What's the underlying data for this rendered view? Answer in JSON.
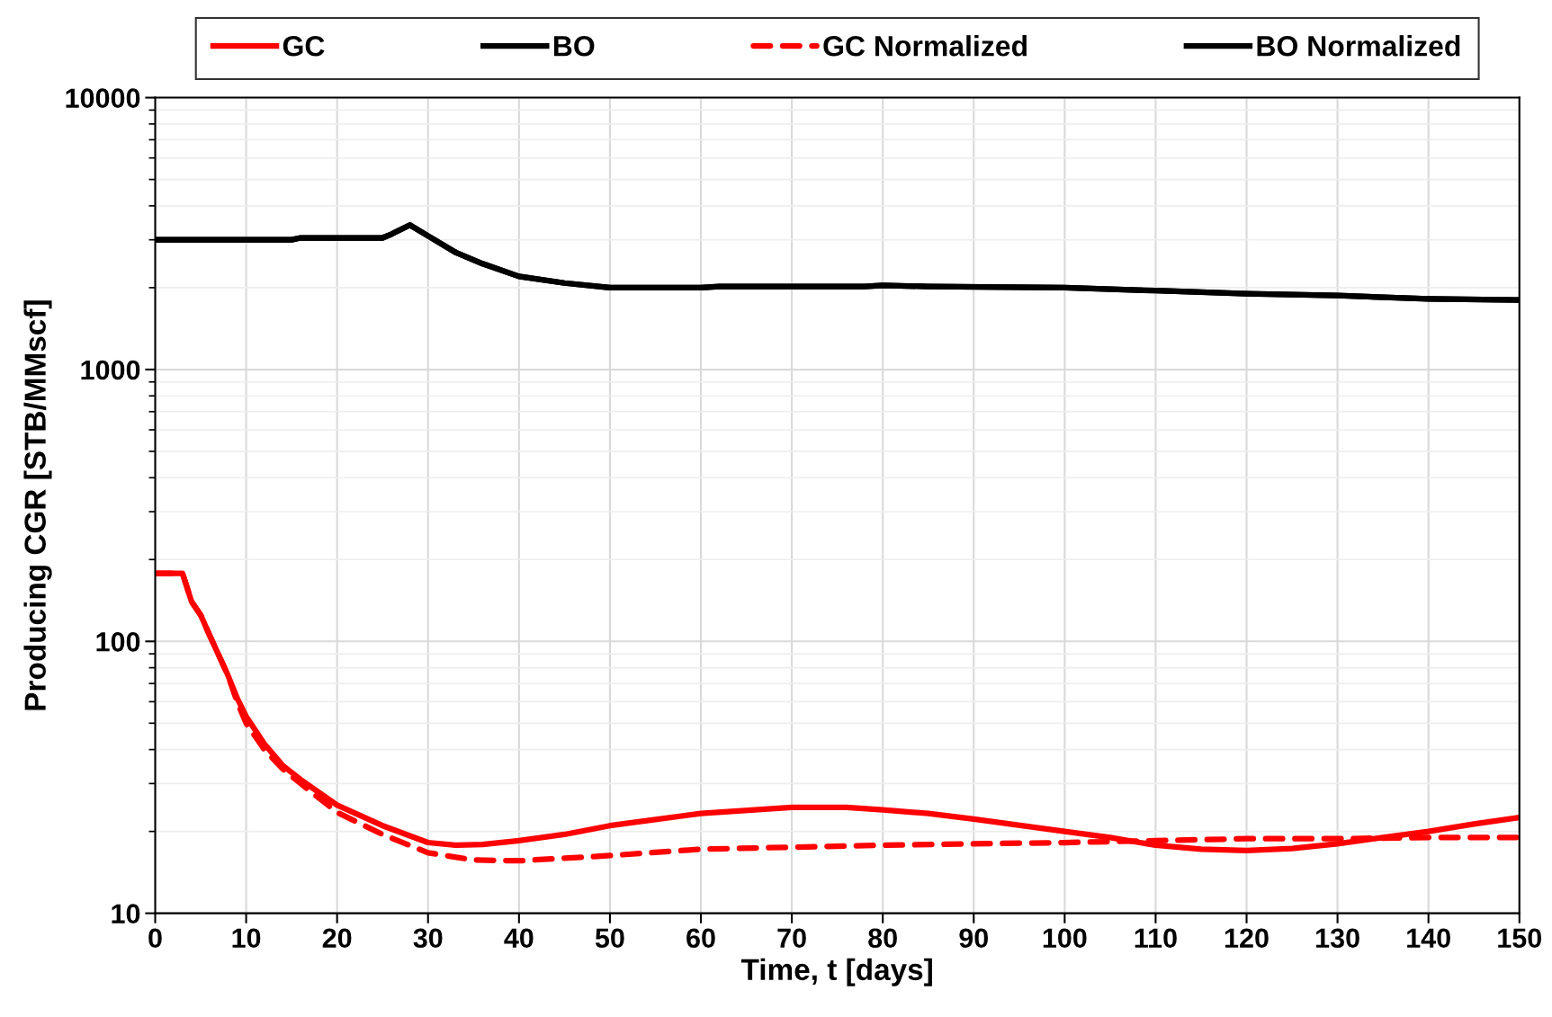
{
  "chart_data": {
    "type": "line",
    "xlabel": "Time, t [days]",
    "ylabel": "Producing CGR [STB/MMscf]",
    "log": "y",
    "xlim": [
      0,
      150
    ],
    "xticks": [
      0,
      10,
      20,
      30,
      40,
      50,
      60,
      70,
      80,
      90,
      100,
      110,
      120,
      130,
      140,
      150
    ],
    "ylim": [
      10,
      10000
    ],
    "yticks": [
      10,
      100,
      1000,
      10000
    ],
    "grid": true,
    "legend": "top",
    "marker": "none",
    "series": [
      {
        "name": "GC",
        "color": "#ff0000",
        "line_style": "solid",
        "x": [
          0,
          3,
          4,
          5,
          6,
          8,
          9,
          10,
          12,
          14,
          16,
          20,
          25,
          30,
          33,
          36,
          40,
          45,
          50,
          60,
          70,
          76,
          80,
          85,
          90,
          100,
          105,
          110,
          115,
          120,
          125,
          130,
          135,
          140,
          145,
          150
        ],
        "values": [
          178,
          178,
          140,
          125,
          105,
          75,
          62,
          53,
          42,
          35,
          31,
          25,
          21,
          18.2,
          17.8,
          17.9,
          18.5,
          19.5,
          21,
          23.3,
          24.5,
          24.5,
          24,
          23.3,
          22.2,
          20,
          19,
          17.8,
          17.2,
          17,
          17.3,
          18,
          19,
          20,
          21.3,
          22.5
        ]
      },
      {
        "name": "BO",
        "color": "#000000",
        "line_style": "solid",
        "x": [
          0,
          15,
          16,
          25,
          26,
          28,
          30,
          33,
          36,
          40,
          45,
          50,
          60,
          62,
          78,
          80,
          85,
          100,
          110,
          120,
          130,
          140,
          150
        ],
        "values": [
          3000,
          3000,
          3050,
          3050,
          3150,
          3400,
          3100,
          2700,
          2450,
          2200,
          2080,
          2000,
          2000,
          2020,
          2020,
          2040,
          2020,
          2000,
          1950,
          1900,
          1870,
          1820,
          1800
        ]
      },
      {
        "name": "GC Normalized",
        "color": "#ff0000",
        "line_style": "dashed",
        "x": [
          0,
          3,
          4,
          5,
          6,
          8,
          9,
          10,
          12,
          14,
          16,
          20,
          25,
          30,
          35,
          40,
          50,
          60,
          70,
          80,
          90,
          100,
          110,
          120,
          130,
          140,
          150
        ],
        "values": [
          178,
          178,
          140,
          125,
          105,
          75,
          60,
          50,
          40,
          34,
          30,
          23.5,
          19.5,
          16.7,
          15.7,
          15.6,
          16.3,
          17.2,
          17.5,
          17.8,
          18,
          18.2,
          18.5,
          18.8,
          18.8,
          19,
          19
        ]
      },
      {
        "name": "BO Normalized",
        "color": "#000000",
        "line_style": "solid",
        "x": [
          0,
          15,
          16,
          25,
          26,
          28,
          30,
          33,
          36,
          40,
          45,
          50,
          60,
          62,
          78,
          80,
          85,
          100,
          110,
          120,
          130,
          140,
          150
        ],
        "values": [
          3000,
          3000,
          3050,
          3050,
          3150,
          3400,
          3100,
          2700,
          2450,
          2200,
          2080,
          2000,
          2000,
          2020,
          2020,
          2040,
          2020,
          2000,
          1950,
          1900,
          1870,
          1820,
          1800
        ]
      }
    ]
  }
}
